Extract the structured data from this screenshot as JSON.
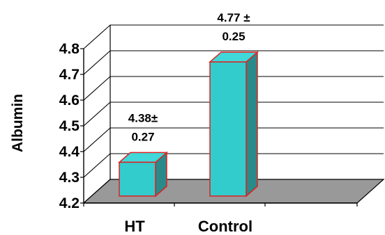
{
  "chart_data": {
    "type": "bar",
    "categories": [
      "HT",
      "Control"
    ],
    "values": [
      4.38,
      4.77
    ],
    "data_labels": [
      [
        "4.38±",
        "0.27"
      ],
      [
        "4.77 ±",
        "0.25"
      ]
    ],
    "title": "",
    "xlabel": "",
    "ylabel": "Albumin",
    "ylim": [
      4.2,
      4.8
    ],
    "yticks": [
      "4.2",
      "4.3",
      "4.4",
      "4.5",
      "4.6",
      "4.7",
      "4.8"
    ],
    "grid": true,
    "legend": "none",
    "style": "3d",
    "colors": {
      "bar_front": "#33CCCC",
      "bar_side": "#2A8A8A",
      "bar_top": "#40D8D8",
      "bar_outline": "#E02020",
      "floor": "#999999"
    }
  }
}
